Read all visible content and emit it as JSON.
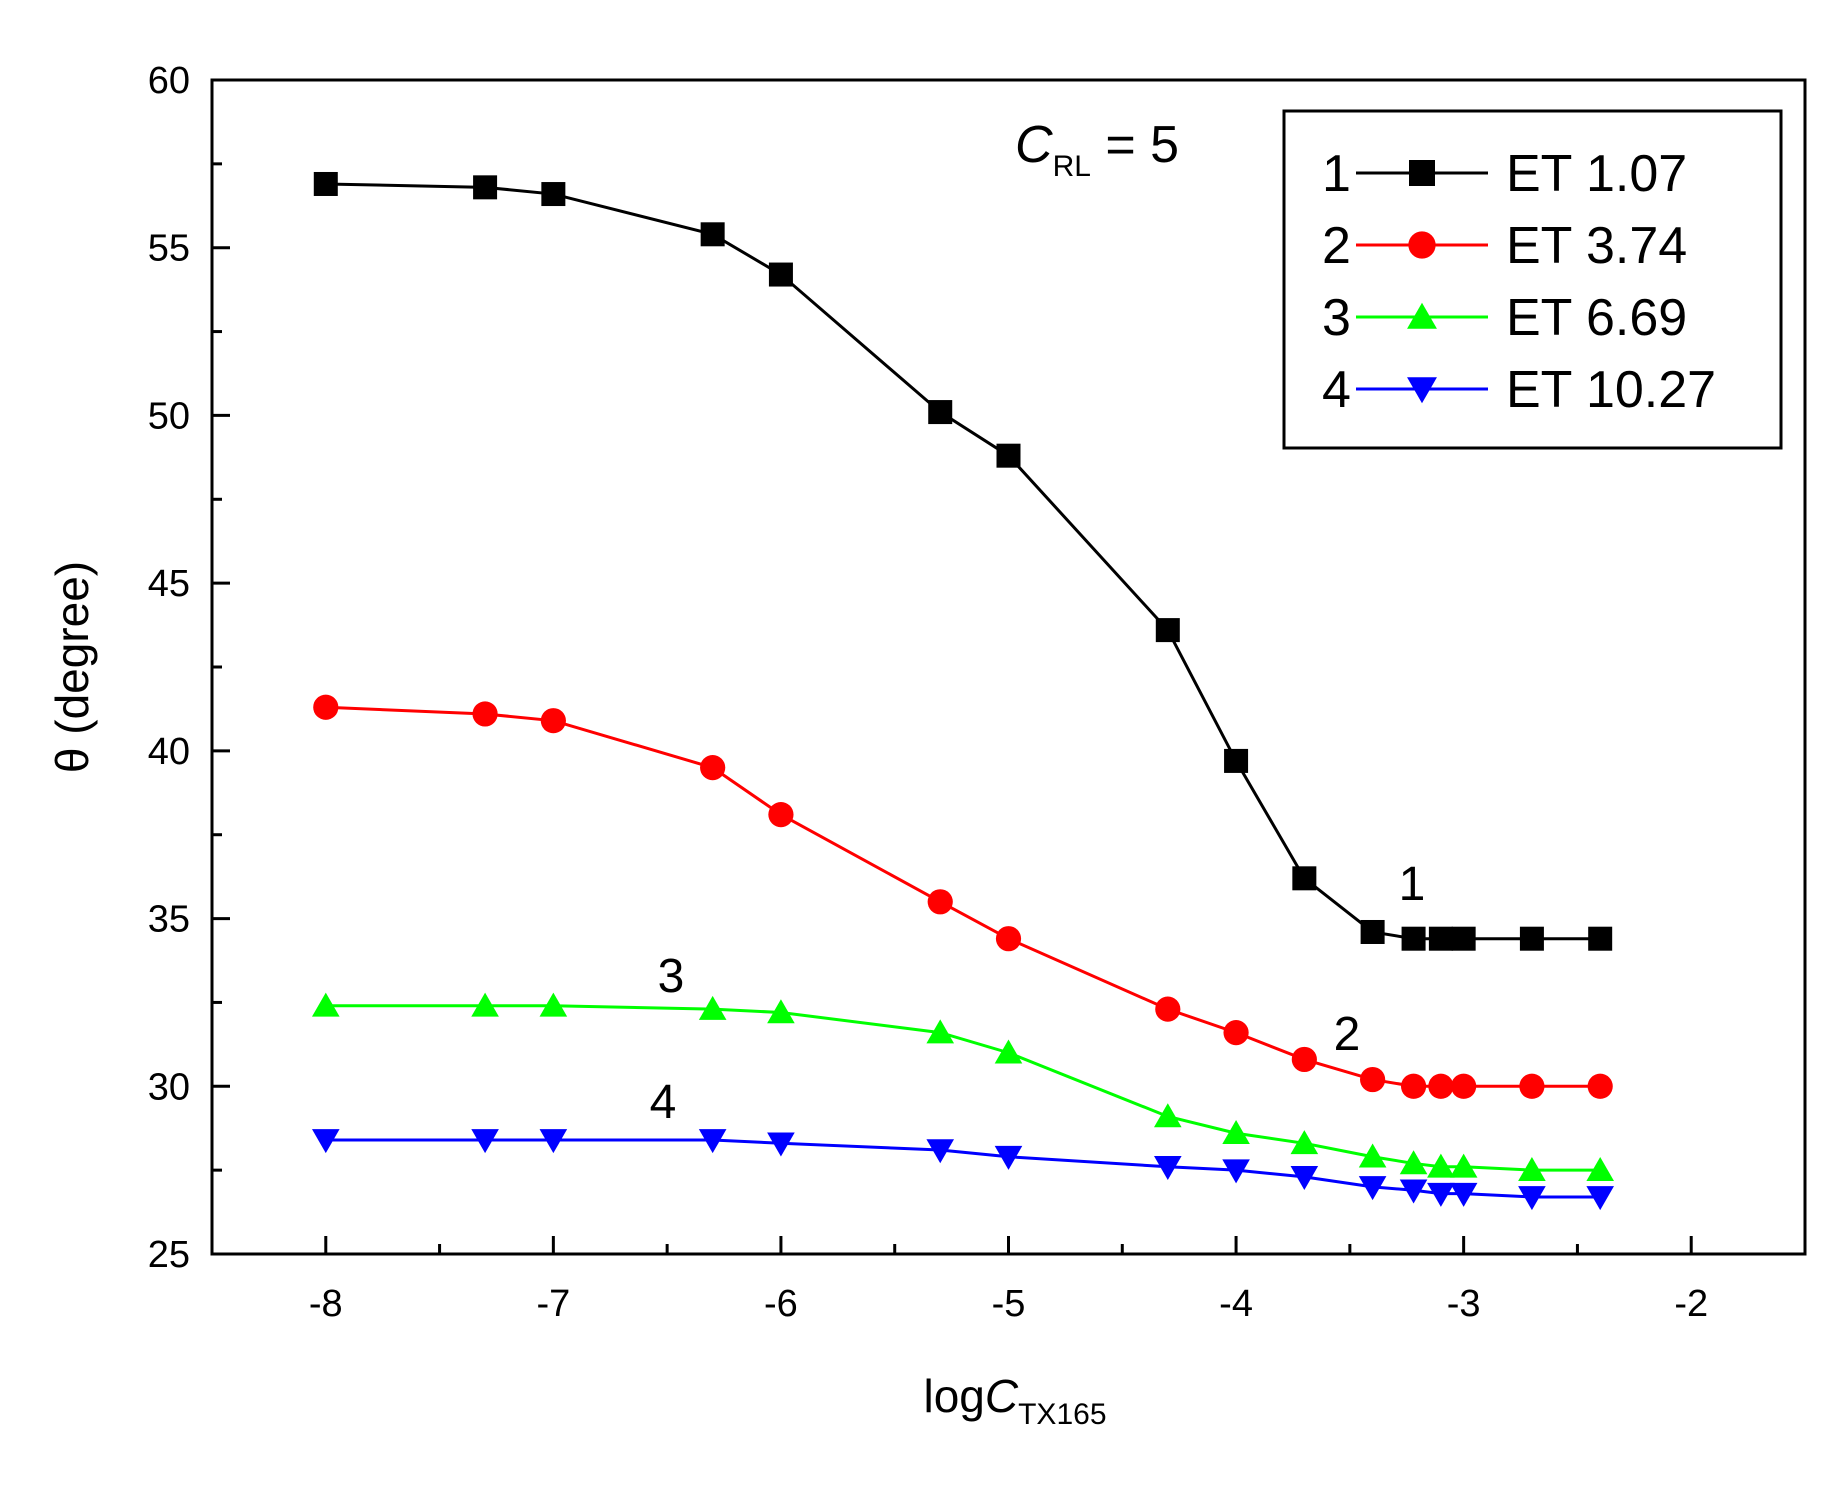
{
  "chart_data": {
    "type": "line",
    "xlabel": {
      "main": "log",
      "var": "C",
      "sub": "TX165"
    },
    "ylabel": "θ (degree)",
    "xlim": [
      -8.5,
      -1.5
    ],
    "ylim": [
      25,
      60
    ],
    "xticks": [
      -8,
      -7,
      -6,
      -5,
      -4,
      -3,
      -2
    ],
    "xtick_labels": [
      "-8",
      "-7",
      "-6",
      "-5",
      "-4",
      "-3",
      "-2"
    ],
    "yticks": [
      25,
      30,
      35,
      40,
      45,
      50,
      55,
      60
    ],
    "ytick_labels": [
      "25",
      "30",
      "35",
      "40",
      "45",
      "50",
      "55",
      "60"
    ],
    "grid": false,
    "legend_position": "top-right",
    "annotation_main": {
      "var": "C",
      "sub": "RL",
      "rest": " = 5"
    },
    "x": [
      -8,
      -7.3,
      -7,
      -6.3,
      -6,
      -5.3,
      -5,
      -4.3,
      -4,
      -3.7,
      -3.4,
      -3.22,
      -3.1,
      -3,
      -2.7,
      -2.4
    ],
    "series": [
      {
        "id": "1",
        "name": "ET 1.07",
        "marker": "square",
        "line_color": "#000000",
        "marker_color": "#000000",
        "curve_label": "1",
        "values": [
          56.9,
          56.8,
          56.6,
          55.4,
          54.2,
          50.1,
          48.8,
          43.6,
          39.7,
          36.2,
          34.6,
          34.4,
          34.4,
          34.4,
          34.4,
          34.4
        ]
      },
      {
        "id": "2",
        "name": "ET 3.74",
        "marker": "circle",
        "line_color": "#ff0000",
        "marker_color": "#ff0000",
        "curve_label": "2",
        "values": [
          41.3,
          41.1,
          40.9,
          39.5,
          38.1,
          35.5,
          34.4,
          32.3,
          31.6,
          30.8,
          30.2,
          30.0,
          30.0,
          30.0,
          30.0,
          30.0
        ]
      },
      {
        "id": "3",
        "name": "ET 6.69",
        "marker": "triangle-up",
        "line_color": "#00ff00",
        "marker_color": "#00ff00",
        "curve_label": "3",
        "values": [
          32.4,
          32.4,
          32.4,
          32.3,
          32.2,
          31.6,
          31.0,
          29.1,
          28.6,
          28.3,
          27.9,
          27.7,
          27.6,
          27.6,
          27.5,
          27.5
        ]
      },
      {
        "id": "4",
        "name": "ET 10.27",
        "marker": "triangle-down",
        "line_color": "#0000ff",
        "marker_color": "#0000ff",
        "curve_label": "4",
        "values": [
          28.4,
          28.4,
          28.4,
          28.4,
          28.3,
          28.1,
          27.9,
          27.6,
          27.5,
          27.3,
          27.0,
          26.9,
          26.8,
          26.8,
          26.7,
          26.7
        ]
      }
    ]
  }
}
